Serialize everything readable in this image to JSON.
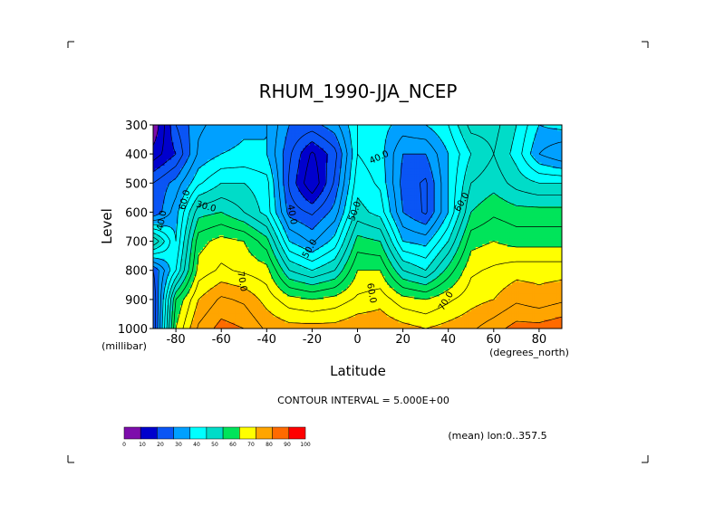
{
  "chart_data": {
    "type": "heatmap",
    "title": "RHUM_1990-JJA_NCEP",
    "xlabel": "Latitude",
    "ylabel": "Level",
    "x_unit": "(degrees_north)",
    "y_unit": "(millibar)",
    "xlim": [
      -90,
      90
    ],
    "ylim": [
      1000,
      300
    ],
    "x_ticks": [
      "-80",
      "-60",
      "-40",
      "-20",
      "0",
      "20",
      "40",
      "60",
      "80"
    ],
    "y_ticks": [
      "300",
      "400",
      "500",
      "600",
      "700",
      "800",
      "900",
      "1000"
    ],
    "x": [
      -90,
      -80,
      -70,
      -60,
      -50,
      -40,
      -30,
      -20,
      -10,
      0,
      10,
      20,
      30,
      40,
      50,
      60,
      70,
      80,
      90
    ],
    "y": [
      300,
      400,
      500,
      600,
      700,
      800,
      900,
      1000
    ],
    "z": [
      [
        5,
        25,
        34,
        37,
        39,
        40,
        30,
        28,
        33,
        45,
        42,
        38,
        40,
        45,
        57,
        57,
        50,
        40,
        42
      ],
      [
        12,
        20,
        36,
        40,
        41,
        40,
        26,
        14,
        23,
        45,
        42,
        30,
        30,
        40,
        50,
        55,
        48,
        35,
        30
      ],
      [
        25,
        32,
        44,
        50,
        50,
        47,
        24,
        10,
        26,
        48,
        44,
        28,
        24,
        40,
        55,
        58,
        53,
        50,
        50
      ],
      [
        25,
        38,
        58,
        60,
        55,
        48,
        28,
        24,
        32,
        52,
        48,
        30,
        24,
        40,
        60,
        64,
        62,
        62,
        62
      ],
      [
        60,
        40,
        68,
        72,
        70,
        62,
        40,
        34,
        42,
        62,
        60,
        40,
        38,
        50,
        68,
        70,
        68,
        68,
        68
      ],
      [
        25,
        45,
        72,
        76,
        74,
        72,
        55,
        50,
        55,
        70,
        70,
        55,
        50,
        62,
        74,
        76,
        78,
        78,
        78
      ],
      [
        20,
        65,
        80,
        86,
        84,
        78,
        72,
        70,
        72,
        76,
        78,
        72,
        70,
        74,
        78,
        80,
        84,
        82,
        84
      ],
      [
        20,
        70,
        86,
        92,
        90,
        84,
        82,
        82,
        82,
        84,
        84,
        82,
        80,
        82,
        84,
        88,
        92,
        92,
        94
      ]
    ],
    "contour_interval_text": "CONTOUR INTERVAL = 5.000E+00",
    "contour_labels": [
      "40.0",
      "60.0",
      "30.0",
      "40.0",
      "50.0",
      "40.0",
      "50.0",
      "60.0",
      "60.0",
      "70.0",
      "70.0"
    ],
    "colorbar": {
      "ticks": [
        "0",
        "10",
        "20",
        "30",
        "40",
        "50",
        "60",
        "70",
        "80",
        "90",
        "100"
      ],
      "colors": [
        "#7d0dab",
        "#0000cd",
        "#0a55f5",
        "#00a0ff",
        "#00ffff",
        "#00dcc8",
        "#00e45a",
        "#ffff00",
        "#ffa500",
        "#ff6a00",
        "#ff0000"
      ]
    },
    "footnote": "(mean) lon:0..357.5"
  }
}
